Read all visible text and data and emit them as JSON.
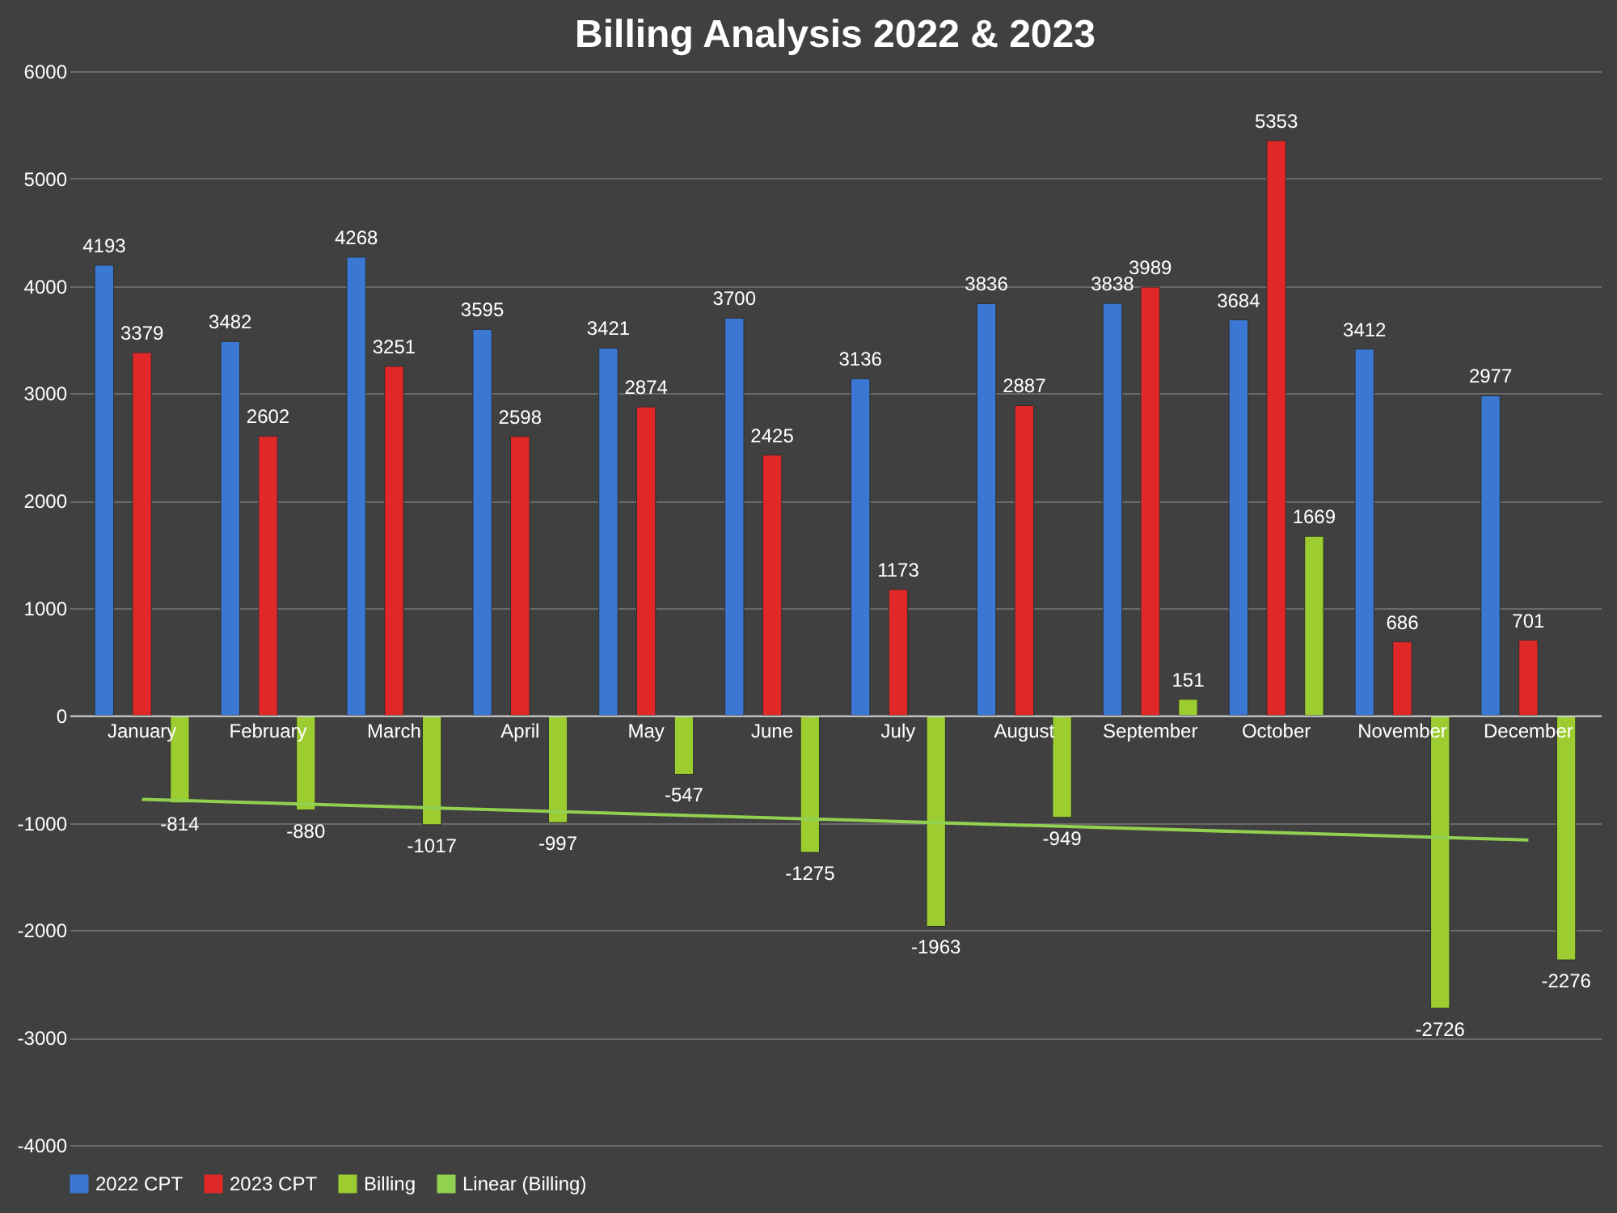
{
  "chart_data": {
    "type": "bar",
    "title": "Billing Analysis 2022 & 2023",
    "categories": [
      "January",
      "February",
      "March",
      "April",
      "May",
      "June",
      "July",
      "August",
      "September",
      "October",
      "November",
      "December"
    ],
    "series": [
      {
        "name": "2022 CPT",
        "color": "#3a78d4",
        "values": [
          4193,
          3482,
          4268,
          3595,
          3421,
          3700,
          3136,
          3836,
          3838,
          3684,
          3412,
          2977
        ],
        "value_labels": [
          "4193",
          "3482",
          "4268",
          "3595",
          "3421",
          "3700",
          "3136",
          "3836",
          "3838",
          "3684",
          "3412",
          "2977"
        ]
      },
      {
        "name": "2023 CPT",
        "color": "#e02828",
        "values": [
          3379,
          2602,
          3251,
          2598,
          2874,
          2425,
          1173,
          2887,
          3989,
          5353,
          686,
          701
        ],
        "value_labels": [
          "3379",
          "2602",
          "3251",
          "2598",
          "2874",
          "2425",
          "1173",
          "2887",
          "3989",
          "5353",
          "686",
          "701"
        ]
      },
      {
        "name": "Billing",
        "color": "#9ccc30",
        "values": [
          -814,
          -880,
          -1017,
          -997,
          -547,
          -1275,
          -1963,
          -949,
          151,
          1669,
          -2726,
          -2276
        ],
        "value_labels": [
          "-814",
          "-880",
          "-1017",
          "-997",
          "-547",
          "-1275",
          "-1963",
          "-949",
          "151",
          "1669",
          "-2726",
          "-2276"
        ]
      },
      {
        "name": "Linear (Billing)",
        "type": "line",
        "color": "#92d050",
        "x": [
          "January",
          "December"
        ],
        "values": [
          -780,
          -1160
        ]
      }
    ],
    "ylim": [
      -4000,
      6000
    ],
    "yticks": [
      -4000,
      -3000,
      -2000,
      -1000,
      0,
      1000,
      2000,
      3000,
      4000,
      5000,
      6000
    ],
    "grid": "y",
    "legend": "bottom"
  }
}
